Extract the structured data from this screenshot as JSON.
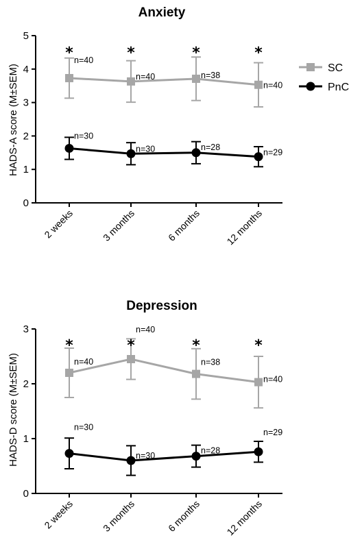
{
  "chart_data": [
    {
      "type": "line",
      "title": "Anxiety",
      "ylabel": "HADS-A score (M±SEM)",
      "xlabel": "",
      "ylim": [
        0,
        5
      ],
      "yticks": [
        "0",
        "1",
        "2",
        "3",
        "4",
        "5"
      ],
      "categories": [
        "2 weeks",
        "3 months",
        "6 months",
        "12 months"
      ],
      "series": [
        {
          "name": "SC",
          "color": "#a6a6a6",
          "marker": "square",
          "values": [
            3.73,
            3.63,
            3.71,
            3.53
          ],
          "sem": [
            0.6,
            0.62,
            0.65,
            0.66
          ],
          "n_labels": [
            "n=40",
            "n=40",
            "n=38",
            "n=40"
          ]
        },
        {
          "name": "PnC",
          "color": "#000000",
          "marker": "circle",
          "values": [
            1.63,
            1.47,
            1.5,
            1.38
          ],
          "sem": [
            0.33,
            0.33,
            0.33,
            0.3
          ],
          "n_labels": [
            "n=30",
            "n=30",
            "n=28",
            "n=29"
          ]
        }
      ],
      "significance": [
        "*",
        "*",
        "*",
        "*"
      ],
      "legend": "top-right"
    },
    {
      "type": "line",
      "title": "Depression",
      "ylabel": "HADS-D score (M±SEM)",
      "xlabel": "",
      "ylim": [
        0,
        3
      ],
      "yticks": [
        "0",
        "1",
        "2",
        "3"
      ],
      "categories": [
        "2 weeks",
        "3 months",
        "6 months",
        "12 months"
      ],
      "series": [
        {
          "name": "SC",
          "color": "#a6a6a6",
          "marker": "square",
          "values": [
            2.2,
            2.45,
            2.18,
            2.03
          ],
          "sem": [
            0.45,
            0.37,
            0.46,
            0.47
          ],
          "n_labels": [
            "n=40",
            "n=40",
            "n=38",
            "n=40"
          ]
        },
        {
          "name": "PnC",
          "color": "#000000",
          "marker": "circle",
          "values": [
            0.73,
            0.6,
            0.68,
            0.76
          ],
          "sem": [
            0.28,
            0.27,
            0.2,
            0.19
          ],
          "n_labels": [
            "n=30",
            "n=30",
            "n=28",
            "n=29"
          ]
        }
      ],
      "significance": [
        "*",
        "*",
        "*",
        "*"
      ],
      "legend": "none"
    }
  ],
  "legend": {
    "items": [
      {
        "label": "SC",
        "color": "#a6a6a6",
        "marker": "square"
      },
      {
        "label": "PnC",
        "color": "#000000",
        "marker": "circle"
      }
    ]
  }
}
